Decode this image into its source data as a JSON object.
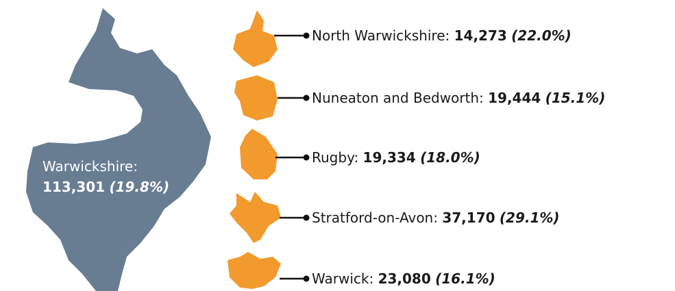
{
  "region": {
    "name": "Warwickshire:",
    "count": "113,301",
    "share": "(19.8%)"
  },
  "districts": [
    {
      "name": "North Warwickshire:",
      "count": "14,273",
      "share": "(22.0%)"
    },
    {
      "name": "Nuneaton and Bedworth:",
      "count": "19,444",
      "share": "(15.1%)"
    },
    {
      "name": "Rugby:",
      "count": "19,334",
      "share": "(18.0%)"
    },
    {
      "name": "Stratford-on-Avon:",
      "count": "37,170",
      "share": "(29.1%)"
    },
    {
      "name": "Warwick:",
      "count": "23,080",
      "share": "(16.1%)"
    }
  ]
}
